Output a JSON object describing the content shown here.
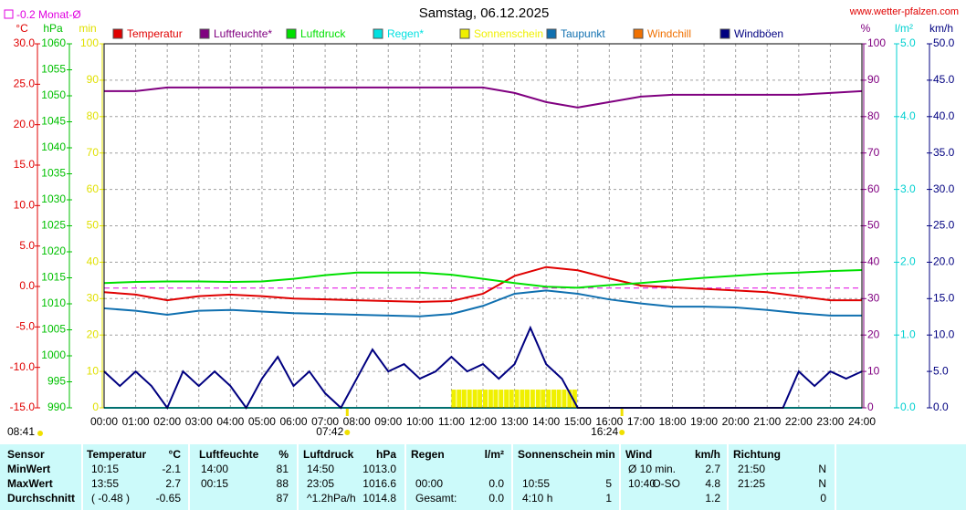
{
  "chart_data": {
    "type": "line",
    "title": "Samstag, 06.12.2025",
    "site": "www.wetter-pfalzen.com",
    "monthly_avg": {
      "value": -0.2,
      "label": "-0.2 Monat-Ø"
    },
    "moon_label": "08:41",
    "sunrise": {
      "value": 7.7,
      "label": "07:42"
    },
    "sunset": {
      "value": 16.4,
      "label": "16:24"
    },
    "grid": true,
    "xlim": [
      0,
      24
    ],
    "xticks": [
      {
        "value": 0,
        "label": "00:00"
      },
      {
        "value": 1,
        "label": "01:00"
      },
      {
        "value": 2,
        "label": "02:00"
      },
      {
        "value": 3,
        "label": "03:00"
      },
      {
        "value": 4,
        "label": "04:00"
      },
      {
        "value": 5,
        "label": "05:00"
      },
      {
        "value": 6,
        "label": "06:00"
      },
      {
        "value": 7,
        "label": "07:00"
      },
      {
        "value": 8,
        "label": "08:00"
      },
      {
        "value": 9,
        "label": "09:00"
      },
      {
        "value": 10,
        "label": "10:00"
      },
      {
        "value": 11,
        "label": "11:00"
      },
      {
        "value": 12,
        "label": "12:00"
      },
      {
        "value": 13,
        "label": "13:00"
      },
      {
        "value": 14,
        "label": "14:00"
      },
      {
        "value": 15,
        "label": "15:00"
      },
      {
        "value": 16,
        "label": "16:00"
      },
      {
        "value": 17,
        "label": "17:00"
      },
      {
        "value": 18,
        "label": "18:00"
      },
      {
        "value": 19,
        "label": "19:00"
      },
      {
        "value": 20,
        "label": "20:00"
      },
      {
        "value": 21,
        "label": "21:00"
      },
      {
        "value": 22,
        "label": "22:00"
      },
      {
        "value": 23,
        "label": "23:00"
      },
      {
        "value": 24,
        "label": "24:00"
      }
    ],
    "axes": {
      "temp": {
        "name": "°C",
        "color": "#e00000",
        "lim": [
          -15,
          30
        ],
        "ticks": [
          {
            "value": -15,
            "label": "-15.0"
          },
          {
            "value": -10,
            "label": "-10.0"
          },
          {
            "value": -5,
            "label": "-5.0"
          },
          {
            "value": 0,
            "label": "0.0"
          },
          {
            "value": 5,
            "label": "5.0"
          },
          {
            "value": 10,
            "label": "10.0"
          },
          {
            "value": 15,
            "label": "15.0"
          },
          {
            "value": 20,
            "label": "20.0"
          },
          {
            "value": 25,
            "label": "25.0"
          },
          {
            "value": 30,
            "label": "30.0"
          }
        ]
      },
      "hpa": {
        "name": "hPa",
        "color": "#00c000",
        "lim": [
          990,
          1060
        ],
        "ticks": [
          990,
          995,
          1000,
          1005,
          1010,
          1015,
          1020,
          1025,
          1030,
          1035,
          1040,
          1045,
          1050,
          1055,
          1060
        ]
      },
      "min": {
        "name": "min",
        "color": "#e0e000",
        "lim": [
          0,
          100
        ],
        "ticks": [
          0,
          10,
          20,
          30,
          40,
          50,
          60,
          70,
          80,
          90,
          100
        ]
      },
      "pct": {
        "name": "%",
        "color": "#800080",
        "lim": [
          0,
          100
        ],
        "ticks": [
          0,
          10,
          20,
          30,
          40,
          50,
          60,
          70,
          80,
          90,
          100
        ]
      },
      "rain": {
        "name": "l/m²",
        "color": "#00d0d0",
        "lim": [
          0,
          5
        ],
        "ticks": [
          {
            "value": 0,
            "label": "0.0"
          },
          {
            "value": 1,
            "label": "1.0"
          },
          {
            "value": 2,
            "label": "2.0"
          },
          {
            "value": 3,
            "label": "3.0"
          },
          {
            "value": 4,
            "label": "4.0"
          },
          {
            "value": 5,
            "label": "5.0"
          }
        ]
      },
      "wind": {
        "name": "km/h",
        "color": "#000080",
        "lim": [
          0,
          50
        ],
        "ticks": [
          {
            "value": 0,
            "label": "0.0"
          },
          {
            "value": 5,
            "label": "5.0"
          },
          {
            "value": 10,
            "label": "10.0"
          },
          {
            "value": 15,
            "label": "15.0"
          },
          {
            "value": 20,
            "label": "20.0"
          },
          {
            "value": 25,
            "label": "25.0"
          },
          {
            "value": 30,
            "label": "30.0"
          },
          {
            "value": 35,
            "label": "35.0"
          },
          {
            "value": 40,
            "label": "40.0"
          },
          {
            "value": 45,
            "label": "45.0"
          },
          {
            "value": 50,
            "label": "50.0"
          }
        ]
      }
    },
    "x": [
      0,
      1,
      2,
      3,
      4,
      5,
      6,
      7,
      8,
      9,
      10,
      11,
      12,
      13,
      14,
      15,
      16,
      17,
      18,
      19,
      20,
      21,
      22,
      23,
      24
    ],
    "series": [
      {
        "name": "Temperatur",
        "color": "#e00000",
        "axis": "temp",
        "values": [
          -0.7,
          -1.0,
          -1.7,
          -1.2,
          -1.0,
          -1.2,
          -1.5,
          -1.6,
          -1.7,
          -1.8,
          -1.9,
          -1.8,
          -0.9,
          1.3,
          2.4,
          2.0,
          1.0,
          0.1,
          -0.1,
          -0.3,
          -0.5,
          -0.7,
          -1.2,
          -1.7,
          -1.7
        ]
      },
      {
        "name": "Luftfeuchte*",
        "color": "#800080",
        "axis": "pct",
        "values": [
          87,
          87,
          88,
          88,
          88,
          88,
          88,
          88,
          88,
          88,
          88,
          88,
          88,
          86.5,
          84,
          82.5,
          84,
          85.5,
          86,
          86,
          86,
          86,
          86,
          86.5,
          87
        ]
      },
      {
        "name": "Luftdruck",
        "color": "#00e000",
        "axis": "hpa",
        "values": [
          1014.0,
          1014.2,
          1014.3,
          1014.3,
          1014.2,
          1014.3,
          1014.8,
          1015.5,
          1016.0,
          1016.0,
          1016.0,
          1015.6,
          1014.8,
          1014.0,
          1013.3,
          1013.1,
          1013.6,
          1014.0,
          1014.5,
          1015.0,
          1015.4,
          1015.8,
          1016.0,
          1016.3,
          1016.5
        ]
      },
      {
        "name": "Regen*",
        "color": "#00e0e0",
        "axis": "rain",
        "x": [
          0,
          24
        ],
        "values": [
          0,
          0
        ]
      },
      {
        "name": "Sonnenschein",
        "color": "#f0f000",
        "axis": "min",
        "type": "bar",
        "x": [
          11,
          11.17,
          11.33,
          11.5,
          11.67,
          11.83,
          12,
          12.17,
          12.33,
          12.5,
          12.67,
          12.83,
          13,
          13.17,
          13.33,
          13.5,
          13.67,
          13.83,
          14,
          14.17,
          14.33,
          14.5,
          14.67,
          14.83
        ],
        "values": [
          5,
          5,
          5,
          5,
          5,
          5,
          5,
          5,
          5,
          5,
          5,
          5,
          5,
          5,
          5,
          5,
          5,
          5,
          5,
          5,
          5,
          5,
          5,
          5
        ]
      },
      {
        "name": "Taupunkt",
        "color": "#1070b0",
        "axis": "temp",
        "values": [
          -2.7,
          -3.0,
          -3.5,
          -3.0,
          -2.9,
          -3.1,
          -3.3,
          -3.4,
          -3.5,
          -3.6,
          -3.7,
          -3.4,
          -2.4,
          -0.9,
          -0.5,
          -0.9,
          -1.6,
          -2.1,
          -2.5,
          -2.5,
          -2.6,
          -2.9,
          -3.3,
          -3.6,
          -3.6
        ]
      },
      {
        "name": "Windchill",
        "color": "#f07000",
        "axis": "temp",
        "x": [],
        "values": []
      },
      {
        "name": "Windböen",
        "color": "#000080",
        "axis": "wind",
        "x": [
          0,
          0.5,
          1,
          1.5,
          2,
          2.5,
          3,
          3.5,
          4,
          4.5,
          5,
          5.5,
          6,
          6.5,
          7,
          7.5,
          8,
          8.5,
          9,
          9.5,
          10,
          10.5,
          11,
          11.5,
          12,
          12.5,
          13,
          13.5,
          14,
          14.5,
          15,
          15.5,
          16,
          16.5,
          17,
          17.5,
          18,
          18.5,
          19,
          19.5,
          20,
          20.5,
          21,
          21.5,
          22,
          22.5,
          23,
          23.5,
          24
        ],
        "values": [
          5,
          3,
          5,
          3,
          0,
          5,
          3,
          5,
          3,
          0,
          4,
          7,
          3,
          5,
          2,
          0,
          4,
          8,
          5,
          6,
          4,
          5,
          7,
          5,
          6,
          4,
          6,
          11,
          6,
          4,
          0,
          0,
          0,
          0,
          0,
          0,
          0,
          0,
          0,
          0,
          0,
          0,
          0,
          0,
          5,
          3,
          5,
          4,
          5
        ]
      }
    ]
  },
  "table": {
    "header": [
      "Sensor",
      "Temperatur",
      "°C",
      "Luftfeuchte",
      "%",
      "Luftdruck",
      "hPa",
      "Regen",
      "l/m²",
      "Sonnenschein min",
      "Wind",
      "km/h",
      "Richtung"
    ],
    "rows": [
      [
        "MinWert",
        "10:15",
        "-2.1",
        "14:00",
        "81",
        "14:50",
        "1013.0",
        null,
        null,
        null,
        null,
        "Ø 10 min.",
        null,
        "2.7",
        "21:50",
        "N"
      ],
      [
        "MaxWert",
        "13:55",
        "2.7",
        "00:15",
        "88",
        "23:05",
        "1016.6",
        "00:00",
        "0.0",
        "10:55",
        "5",
        "10:40",
        "O-SO",
        "4.8",
        "21:25",
        "N"
      ],
      [
        "Durchschnitt",
        "( -0.48 )",
        "-0.65",
        null,
        "87",
        "^1.2hPa/h",
        "1014.8",
        "Gesamt:",
        "0.0",
        "4:10 h",
        "1",
        null,
        null,
        "1.2",
        null,
        "0"
      ]
    ]
  }
}
